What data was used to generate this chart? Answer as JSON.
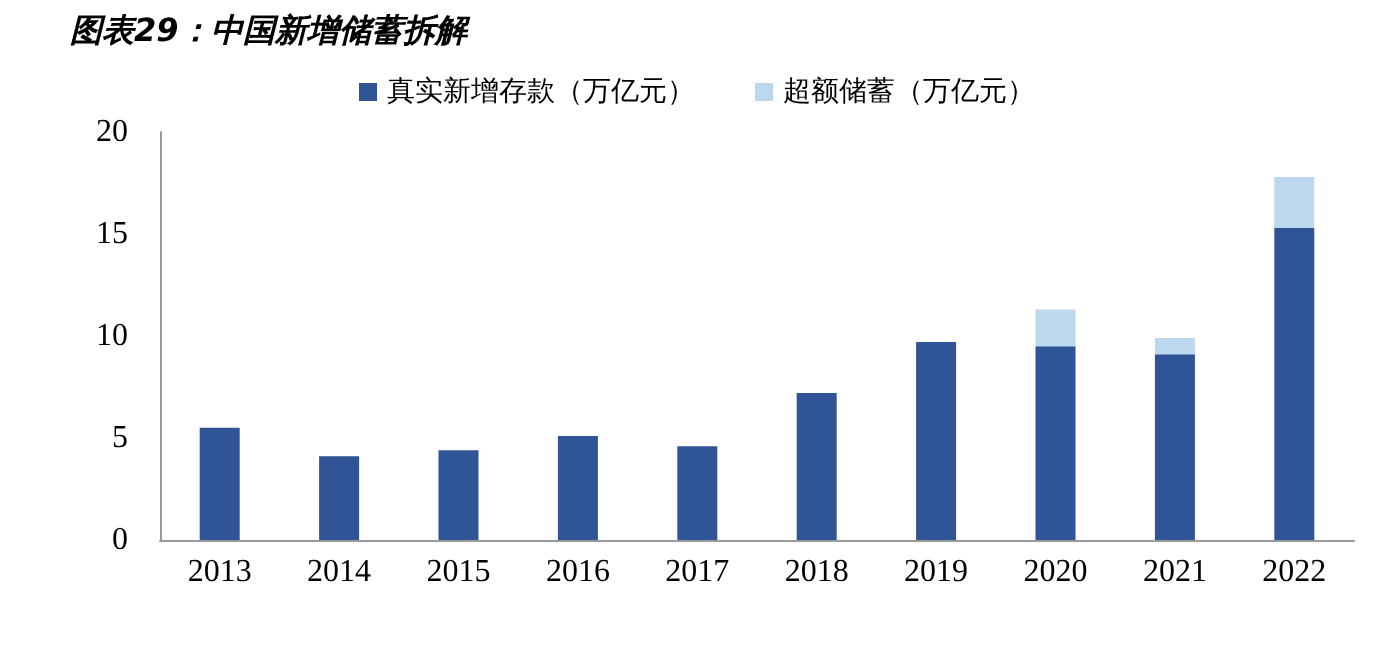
{
  "chart_data": {
    "type": "bar",
    "title": "图表29：中国新增储蓄拆解",
    "categories": [
      "2013",
      "2014",
      "2015",
      "2016",
      "2017",
      "2018",
      "2019",
      "2020",
      "2021",
      "2022"
    ],
    "series": [
      {
        "name": "真实新增存款（万亿元）",
        "color": "#2f5597",
        "values": [
          5.5,
          4.1,
          4.4,
          5.1,
          4.6,
          7.2,
          9.7,
          9.5,
          9.1,
          15.3
        ]
      },
      {
        "name": "超额储蓄（万亿元）",
        "color": "#bdd7ee",
        "values": [
          null,
          null,
          null,
          null,
          null,
          null,
          null,
          1.8,
          0.8,
          2.5
        ]
      }
    ],
    "stacked": true,
    "ylim": [
      0,
      20
    ],
    "yticks": [
      0,
      5,
      10,
      15,
      20
    ],
    "grid": false,
    "legend": "top"
  }
}
